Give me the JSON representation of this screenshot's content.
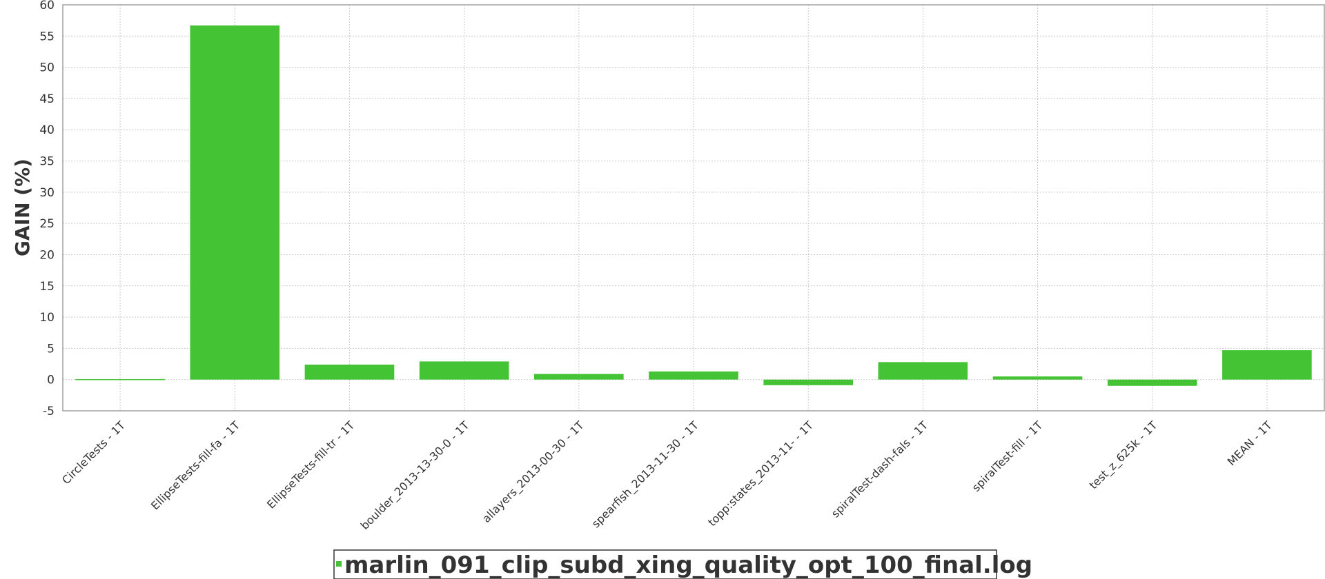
{
  "chart_data": {
    "type": "bar",
    "title": "",
    "xlabel": "",
    "ylabel": "GAIN (%)",
    "ylim": [
      -5,
      60
    ],
    "yticks": [
      -5,
      0,
      5,
      10,
      15,
      20,
      25,
      30,
      35,
      40,
      45,
      50,
      55,
      60
    ],
    "grid": true,
    "legend_position": "bottom-center",
    "categories": [
      "CircleTests - 1T",
      "EllipseTests-fill-fa - 1T",
      "EllipseTests-fill-tr - 1T",
      "boulder_2013-13-30-0 - 1T",
      "allayers_2013-00-30 - 1T",
      "spearfish_2013-11-30 - 1T",
      "topp:states_2013-11- - 1T",
      "spiralTest-dash-fals - 1T",
      "spiralTest-fill - 1T",
      "test_z_625k - 1T",
      "MEAN - 1T"
    ],
    "series": [
      {
        "name": "marlin_091_clip_subd_xing_quality_opt_100_final.log",
        "color": "#44c434",
        "values": [
          -0.1,
          56.7,
          2.4,
          2.9,
          0.9,
          1.3,
          -0.9,
          2.8,
          0.5,
          -1.0,
          4.7
        ]
      }
    ]
  }
}
